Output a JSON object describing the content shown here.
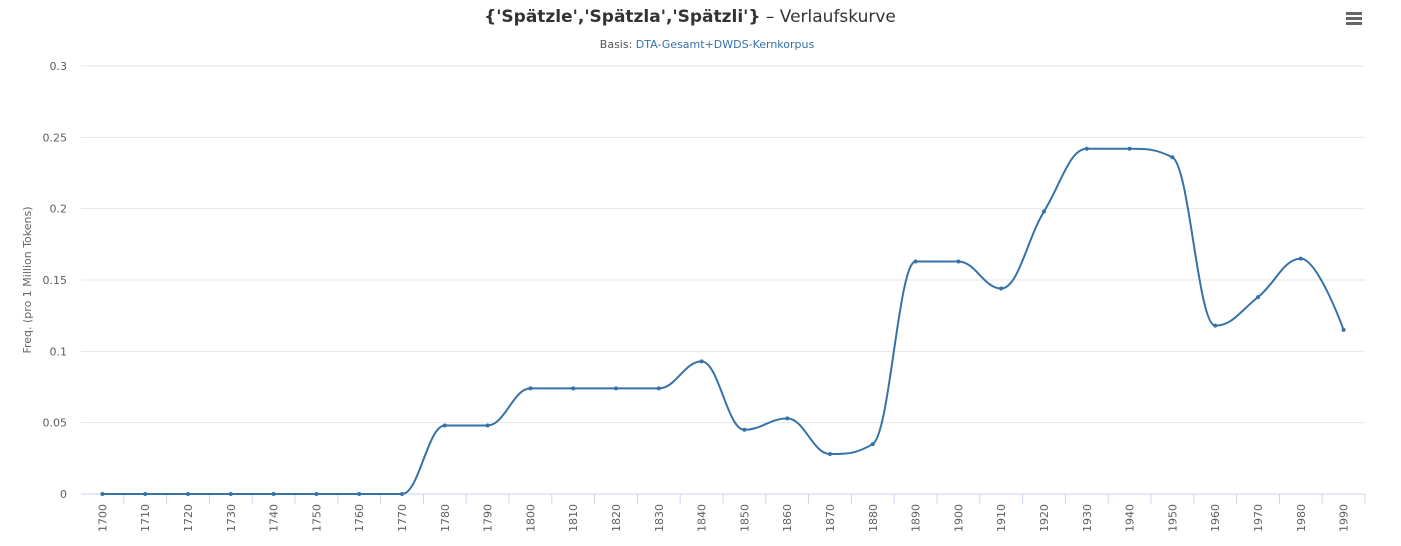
{
  "header": {
    "title_bold": "{'Spätzle','Spätzla','Spätzli'}",
    "title_rest": " – Verlaufskurve",
    "subtitle_prefix": "Basis: ",
    "subtitle_link": "DTA-Gesamt+DWDS-Kernkorpus",
    "menu_icon": "hamburger-menu-icon"
  },
  "colors": {
    "series": "#3572a8",
    "link": "#3572a8",
    "grid": "#e6e6e6"
  },
  "chart_data": {
    "type": "line",
    "smoothing": "spline",
    "title": "{'Spätzle','Spätzla','Spätzli'} – Verlaufskurve",
    "subtitle": "Basis: DTA-Gesamt+DWDS-Kernkorpus",
    "xlabel": "",
    "ylabel": "Freq. (pro 1 Million Tokens)",
    "ylim": [
      0,
      0.3
    ],
    "yticks": [
      "0",
      "0.05",
      "0.1",
      "0.15",
      "0.2",
      "0.25",
      "0.3"
    ],
    "grid": true,
    "legend": "none",
    "categories": [
      "1700",
      "1710",
      "1720",
      "1730",
      "1740",
      "1750",
      "1760",
      "1770",
      "1780",
      "1790",
      "1800",
      "1810",
      "1820",
      "1830",
      "1840",
      "1850",
      "1860",
      "1870",
      "1880",
      "1890",
      "1900",
      "1910",
      "1920",
      "1930",
      "1940",
      "1950",
      "1960",
      "1970",
      "1980",
      "1990"
    ],
    "values": [
      0,
      0,
      0,
      0,
      0,
      0,
      0,
      0,
      0.048,
      0.048,
      0.074,
      0.074,
      0.074,
      0.074,
      0.093,
      0.045,
      0.053,
      0.028,
      0.035,
      0.163,
      0.163,
      0.144,
      0.198,
      0.242,
      0.242,
      0.236,
      0.118,
      0.138,
      0.165,
      0.115
    ]
  }
}
